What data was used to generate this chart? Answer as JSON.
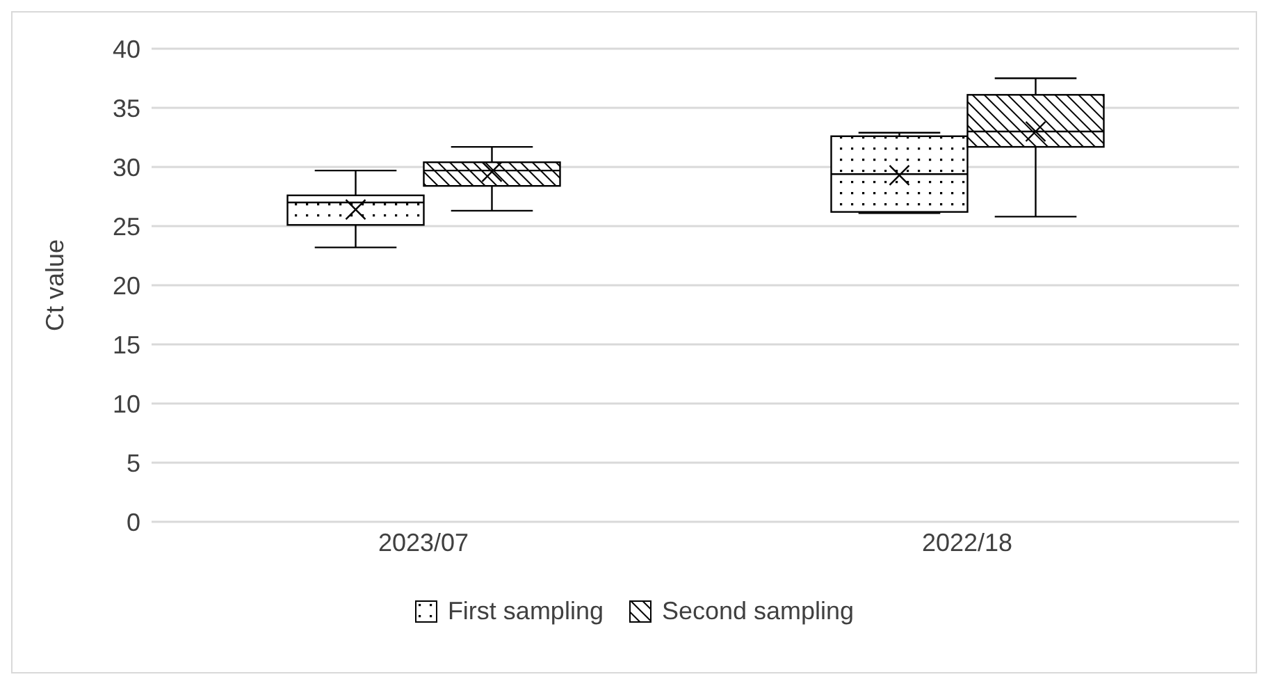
{
  "chart_data": {
    "type": "box",
    "ylabel": "Ct value",
    "categories": [
      "2023/07",
      "2022/18"
    ],
    "ylim": [
      0,
      40
    ],
    "yticks": [
      0,
      5,
      10,
      15,
      20,
      25,
      30,
      35,
      40
    ],
    "grid": "y",
    "legend": "bottom",
    "series": [
      {
        "name": "First sampling",
        "color": "#000000",
        "boxes": [
          {
            "low": 23.2,
            "q1": 25.1,
            "median": 27.0,
            "q3": 27.6,
            "high": 29.7,
            "mean": 26.4
          },
          {
            "low": 26.1,
            "q1": 26.2,
            "median": 29.4,
            "q3": 32.6,
            "high": 32.9,
            "mean": 29.3
          }
        ]
      },
      {
        "name": "Second sampling",
        "color": "#000000",
        "boxes": [
          {
            "low": 26.3,
            "q1": 28.4,
            "median": 29.7,
            "q3": 30.4,
            "high": 31.7,
            "mean": 29.6
          },
          {
            "low": 25.8,
            "q1": 31.7,
            "median": 33.0,
            "q3": 36.1,
            "high": 37.5,
            "mean": 33.0
          }
        ]
      }
    ]
  }
}
